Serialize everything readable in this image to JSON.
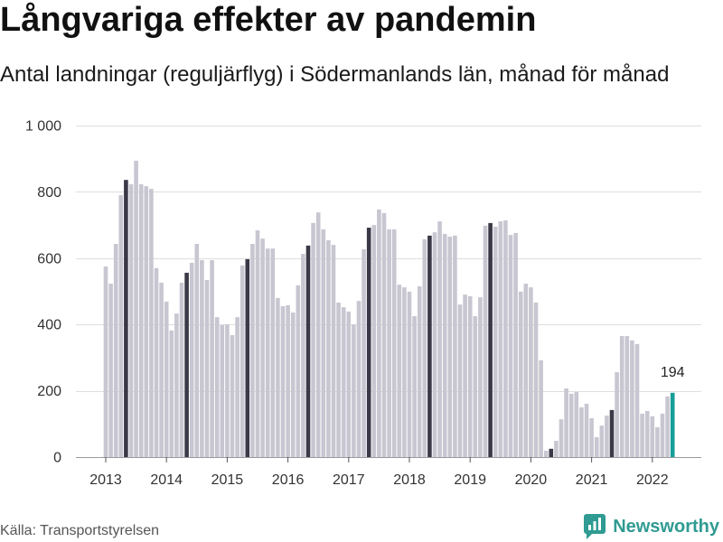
{
  "chart_data": {
    "type": "bar",
    "title": "Långvariga effekter av pandemin",
    "subtitle": "Antal landningar (reguljärflyg) i Södermanlands län, månad för månad",
    "x": [
      "2013-01",
      "2013-02",
      "2013-03",
      "2013-04",
      "2013-05",
      "2013-06",
      "2013-07",
      "2013-08",
      "2013-09",
      "2013-10",
      "2013-11",
      "2013-12",
      "2014-01",
      "2014-02",
      "2014-03",
      "2014-04",
      "2014-05",
      "2014-06",
      "2014-07",
      "2014-08",
      "2014-09",
      "2014-10",
      "2014-11",
      "2014-12",
      "2015-01",
      "2015-02",
      "2015-03",
      "2015-04",
      "2015-05",
      "2015-06",
      "2015-07",
      "2015-08",
      "2015-09",
      "2015-10",
      "2015-11",
      "2015-12",
      "2016-01",
      "2016-02",
      "2016-03",
      "2016-04",
      "2016-05",
      "2016-06",
      "2016-07",
      "2016-08",
      "2016-09",
      "2016-10",
      "2016-11",
      "2016-12",
      "2017-01",
      "2017-02",
      "2017-03",
      "2017-04",
      "2017-05",
      "2017-06",
      "2017-07",
      "2017-08",
      "2017-09",
      "2017-10",
      "2017-11",
      "2017-12",
      "2018-01",
      "2018-02",
      "2018-03",
      "2018-04",
      "2018-05",
      "2018-06",
      "2018-07",
      "2018-08",
      "2018-09",
      "2018-10",
      "2018-11",
      "2018-12",
      "2019-01",
      "2019-02",
      "2019-03",
      "2019-04",
      "2019-05",
      "2019-06",
      "2019-07",
      "2019-08",
      "2019-09",
      "2019-10",
      "2019-11",
      "2019-12",
      "2020-01",
      "2020-02",
      "2020-03",
      "2020-04",
      "2020-05",
      "2020-06",
      "2020-07",
      "2020-08",
      "2020-09",
      "2020-10",
      "2020-11",
      "2020-12",
      "2021-01",
      "2021-02",
      "2021-03",
      "2021-04",
      "2021-05",
      "2021-06",
      "2021-07",
      "2021-08",
      "2021-09",
      "2021-10",
      "2021-11",
      "2021-12",
      "2022-01",
      "2022-02",
      "2022-03",
      "2022-04",
      "2022-05"
    ],
    "values": [
      575,
      523,
      643,
      790,
      836,
      823,
      894,
      823,
      817,
      809,
      570,
      526,
      469,
      382,
      433,
      526,
      556,
      586,
      643,
      594,
      534,
      594,
      422,
      398,
      400,
      368,
      422,
      578,
      597,
      643,
      684,
      659,
      629,
      629,
      480,
      455,
      458,
      436,
      518,
      613,
      638,
      706,
      738,
      687,
      654,
      640,
      466,
      452,
      439,
      400,
      471,
      627,
      692,
      700,
      747,
      736,
      687,
      687,
      520,
      512,
      499,
      425,
      515,
      657,
      668,
      678,
      711,
      673,
      665,
      668,
      460,
      490,
      485,
      425,
      482,
      698,
      706,
      695,
      711,
      714,
      670,
      676,
      499,
      523,
      512,
      466,
      292,
      19,
      25,
      49,
      114,
      207,
      191,
      196,
      150,
      161,
      117,
      60,
      95,
      125,
      142,
      256,
      365,
      365,
      352,
      341,
      131,
      139,
      123,
      90,
      131,
      183,
      194
    ],
    "highlighted_x": [
      "2013-05",
      "2014-05",
      "2015-05",
      "2016-05",
      "2017-05",
      "2018-05",
      "2019-05",
      "2020-05",
      "2021-05"
    ],
    "latest_x": "2022-05",
    "x_ticks": [
      "2013-01",
      "2014-01",
      "2015-01",
      "2016-01",
      "2017-01",
      "2018-01",
      "2019-01",
      "2020-01",
      "2021-01",
      "2022-01"
    ],
    "x_tick_labels": [
      "2013",
      "2014",
      "2015",
      "2016",
      "2017",
      "2018",
      "2019",
      "2020",
      "2021",
      "2022"
    ],
    "y_ticks": [
      0,
      200,
      400,
      600,
      800,
      1000
    ],
    "y_tick_labels": [
      "0",
      "200",
      "400",
      "600",
      "800",
      "1 000"
    ],
    "ylim": [
      0,
      1000
    ],
    "grid": true,
    "annotations": [
      {
        "x": "2022-05",
        "text": "194"
      }
    ]
  },
  "footer": {
    "source": "Källa: Transportstyrelsen",
    "logo_text": "Newsworthy"
  },
  "icons": {
    "logo": "newsworthy-logo-icon"
  },
  "colors": {
    "bar": "#c7c6d1",
    "highlight": "#3a3947",
    "latest": "#169e98",
    "grid": "#dedede",
    "axis": "#9a9a9a",
    "brand": "#2f9b92"
  }
}
